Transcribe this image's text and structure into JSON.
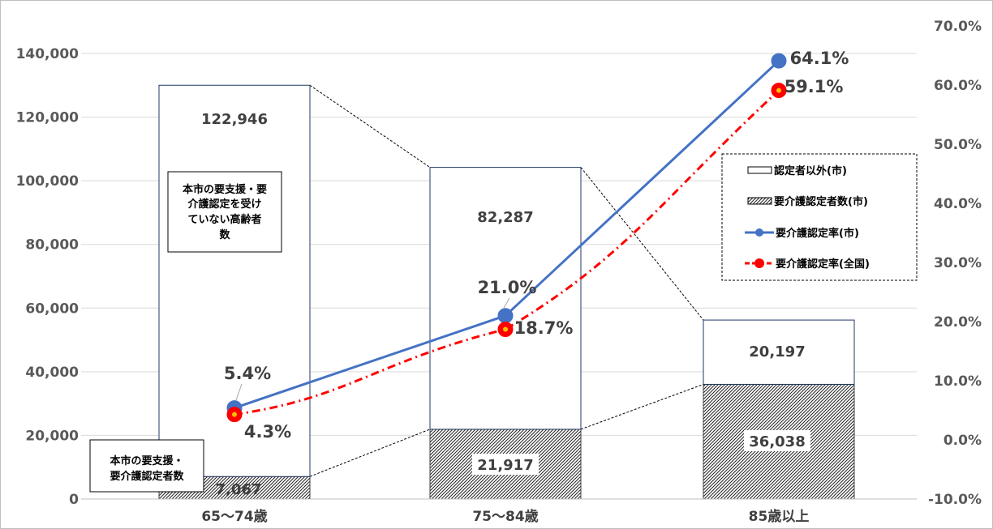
{
  "chart_data": {
    "type": "bar",
    "stacked": true,
    "categories": [
      "65～74歳",
      "75～84歳",
      "85歳以上"
    ],
    "y_left": {
      "ylim": [
        0,
        140000
      ],
      "ticks": [
        "0",
        "20,000",
        "40,000",
        "60,000",
        "80,000",
        "100,000",
        "120,000",
        "140,000"
      ]
    },
    "y_right": {
      "ylim": [
        -10,
        70
      ],
      "ticks": [
        "-10.0%",
        "0.0%",
        "10.0%",
        "20.0%",
        "30.0%",
        "40.0%",
        "50.0%",
        "60.0%",
        "70.0%"
      ]
    },
    "bar_series": [
      {
        "name": "要介護認定者数(市)",
        "values": [
          7067,
          21917,
          36038
        ],
        "labels": [
          "7,067",
          "21,917",
          "36,038"
        ]
      },
      {
        "name": "認定者以外(市)",
        "values": [
          122946,
          82287,
          20197
        ],
        "labels": [
          "122,946",
          "82,287",
          "20,197"
        ]
      }
    ],
    "line_series": [
      {
        "name": "要介護認定率(市)",
        "values": [
          5.4,
          21.0,
          64.1
        ],
        "labels": [
          "5.4%",
          "21.0%",
          "64.1%"
        ],
        "color": "#4472C4"
      },
      {
        "name": "要介護認定率(全国)",
        "values": [
          4.3,
          18.7,
          59.1
        ],
        "labels": [
          "4.3%",
          "18.7%",
          "59.1%"
        ],
        "color": "#FF0000"
      }
    ],
    "legend_position": "right",
    "annotations": [
      "本市の要支援・要介護認定を受けていない高齢者数",
      "本市の要支援・要介護認定者数"
    ]
  },
  "legend": {
    "items": [
      "認定者以外(市)",
      "要介護認定者数(市)",
      "要介護認定率(市)",
      "要介護認定率(全国)"
    ]
  },
  "notes": {
    "upper_lines": [
      "本市の要支援・要",
      "介護認定を受け",
      "ていない高齢者",
      "数"
    ],
    "lower_lines": [
      "本市の要支援・",
      "要介護認定者数"
    ]
  }
}
